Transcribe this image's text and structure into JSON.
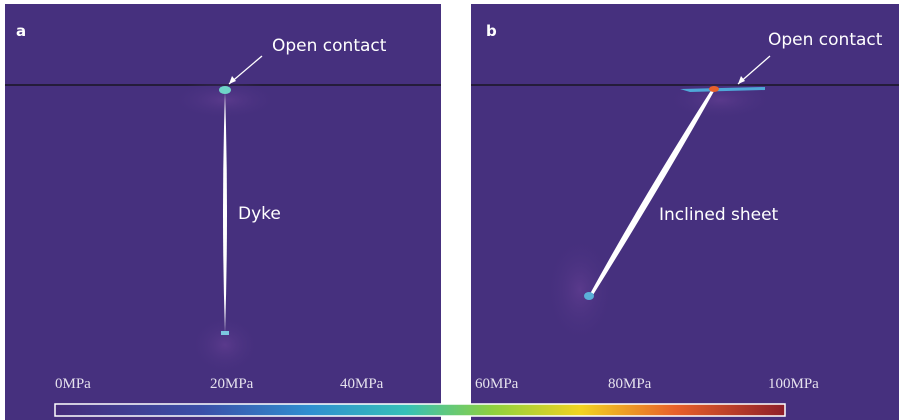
{
  "panels": [
    {
      "label": "a",
      "annotations": [
        "Open contact",
        "Dyke"
      ]
    },
    {
      "label": "b",
      "annotations": [
        "Open contact",
        "Inclined sheet"
      ]
    }
  ],
  "colorbar": {
    "ticks": [
      "0MPa",
      "20MPa",
      "40MPa",
      "60MPa",
      "80MPa",
      "100MPa"
    ]
  }
}
